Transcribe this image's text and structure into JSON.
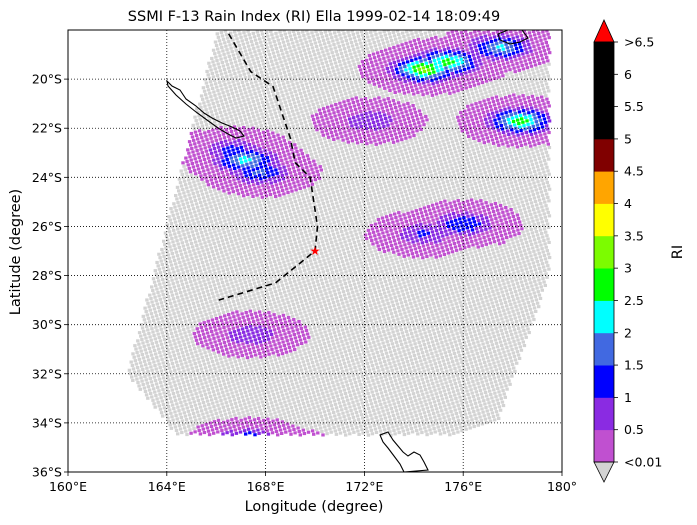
{
  "chart_data": {
    "type": "heatmap",
    "title": "SSMI F-13 Rain Index (RI) Ella 1999-02-14 18:09:49",
    "xlabel": "Longitude (degree)",
    "ylabel": "Latitude (degree)",
    "xlim": [
      160,
      180
    ],
    "ylim": [
      -36,
      -18
    ],
    "x_ticks": [
      160,
      164,
      168,
      172,
      176,
      180
    ],
    "x_tick_labels": [
      "160°E",
      "164°E",
      "168°E",
      "172°E",
      "176°E",
      "180°"
    ],
    "y_ticks": [
      -20,
      -22,
      -24,
      -26,
      -28,
      -30,
      -32,
      -34,
      -36
    ],
    "y_tick_labels": [
      "20°S",
      "22°S",
      "24°S",
      "26°S",
      "28°S",
      "30°S",
      "32°S",
      "34°S",
      "36°S"
    ],
    "grid": true,
    "colorbar": {
      "label": "RI",
      "tick_labels": [
        ">6.5",
        "6",
        "5.5",
        "5",
        "4.5",
        "4",
        "3.5",
        "3",
        "2.5",
        "2",
        "1.5",
        "1",
        "0.5",
        "<0.01"
      ],
      "colors": [
        "#c050d0",
        "#8a2be2",
        "#0000ff",
        "#4169e1",
        "#00ffff",
        "#00ff00",
        "#7cfc00",
        "#ffff00",
        "#ffa500",
        "#800000",
        "#000000",
        "#000000",
        "#000000"
      ],
      "under_color": "#d3d3d3",
      "over_color": "#ff0000"
    },
    "swath_footprint": [
      [
        166.1,
        -17.8
      ],
      [
        179.5,
        -17.8
      ],
      [
        179.5,
        -28
      ],
      [
        177.2,
        -34.5
      ],
      [
        164.4,
        -34.5
      ],
      [
        162.4,
        -32
      ]
    ],
    "rain_cells": [
      {
        "lon": 167.2,
        "lat": -23.3,
        "ri": 2.2
      },
      {
        "lon": 166.7,
        "lat": -22.9,
        "ri": 1.2
      },
      {
        "lon": 167.8,
        "lat": -23.8,
        "ri": 1.6
      },
      {
        "lon": 175.4,
        "lat": -19.3,
        "ri": 2.7
      },
      {
        "lon": 174.4,
        "lat": -19.6,
        "ri": 3.2
      },
      {
        "lon": 177.5,
        "lat": -18.7,
        "ri": 2.1
      },
      {
        "lon": 178.3,
        "lat": -21.7,
        "ri": 2.8
      },
      {
        "lon": 176.0,
        "lat": -25.9,
        "ri": 1.5
      },
      {
        "lon": 174.4,
        "lat": -26.3,
        "ri": 1.1
      },
      {
        "lon": 167.3,
        "lat": -34.8,
        "ri": 2.3
      },
      {
        "lon": 168.8,
        "lat": -35.2,
        "ri": 1.4
      },
      {
        "lon": 167.4,
        "lat": -30.4,
        "ri": 1.0
      },
      {
        "lon": 172.2,
        "lat": -21.7,
        "ri": 1.0
      }
    ],
    "storm_track": [
      [
        166.3,
        -17.8
      ],
      [
        167.4,
        -19.7
      ],
      [
        168.3,
        -20.3
      ],
      [
        169.0,
        -22.4
      ],
      [
        169.2,
        -23.4
      ],
      [
        169.8,
        -24.0
      ],
      [
        170.1,
        -26.0
      ],
      [
        170.0,
        -27.0
      ],
      [
        168.4,
        -28.3
      ],
      [
        166.1,
        -29.0
      ]
    ],
    "storm_marker": {
      "lon": 170.0,
      "lat": -27.0,
      "color": "#ff0000"
    }
  }
}
